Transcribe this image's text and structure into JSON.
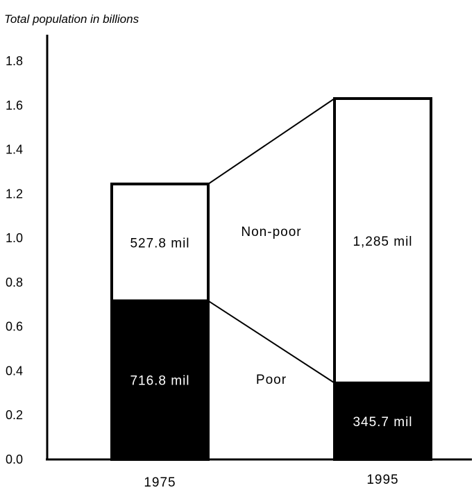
{
  "chart_data": {
    "type": "bar",
    "stacked": true,
    "ylabel": "Total population in billions",
    "ylim": [
      0,
      1.8
    ],
    "yticks": [
      "0.0",
      "0.2",
      "0.4",
      "0.6",
      "0.8",
      "1.0",
      "1.2",
      "1.4",
      "1.6",
      "1.8"
    ],
    "categories": [
      "1975",
      "1995"
    ],
    "series": [
      {
        "name": "Poor",
        "values": [
          0.7168,
          0.3457
        ],
        "labels": [
          "716.8 mil",
          "345.7 mil"
        ],
        "color": "#000000"
      },
      {
        "name": "Non-poor",
        "values": [
          0.5278,
          1.285
        ],
        "labels": [
          "527.8 mil",
          "1,285 mil"
        ],
        "color": "#ffffff"
      }
    ],
    "grid": false,
    "connector_lines": true
  }
}
